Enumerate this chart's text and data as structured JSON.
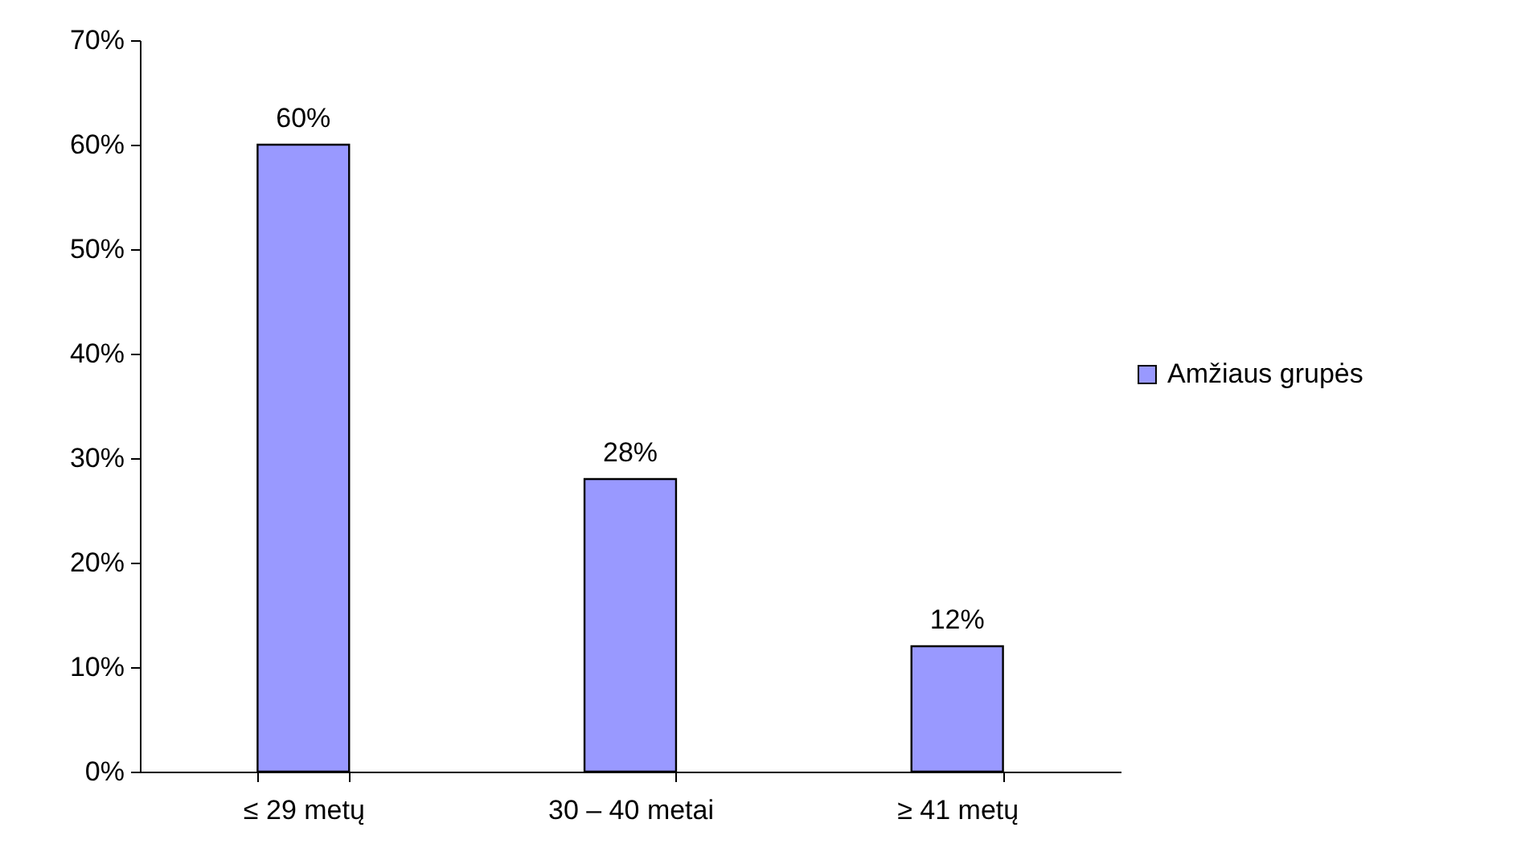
{
  "chart_data": {
    "type": "bar",
    "categories": [
      "≤ 29 metų",
      "30 – 40 metai",
      "≥ 41 metų"
    ],
    "series": [
      {
        "name": "Amžiaus grupės",
        "color": "#9999ff",
        "values": [
          60,
          28,
          12
        ],
        "value_labels": [
          "60%",
          "28%",
          "12%"
        ]
      }
    ],
    "ylim": [
      0,
      70
    ],
    "yticks": [
      {
        "value": 0,
        "label": "0%"
      },
      {
        "value": 10,
        "label": "10%"
      },
      {
        "value": 20,
        "label": "20%"
      },
      {
        "value": 30,
        "label": "30%"
      },
      {
        "value": 40,
        "label": "40%"
      },
      {
        "value": 50,
        "label": "50%"
      },
      {
        "value": 60,
        "label": "60%"
      },
      {
        "value": 70,
        "label": "70%"
      }
    ],
    "grid": false,
    "legend": "right"
  }
}
